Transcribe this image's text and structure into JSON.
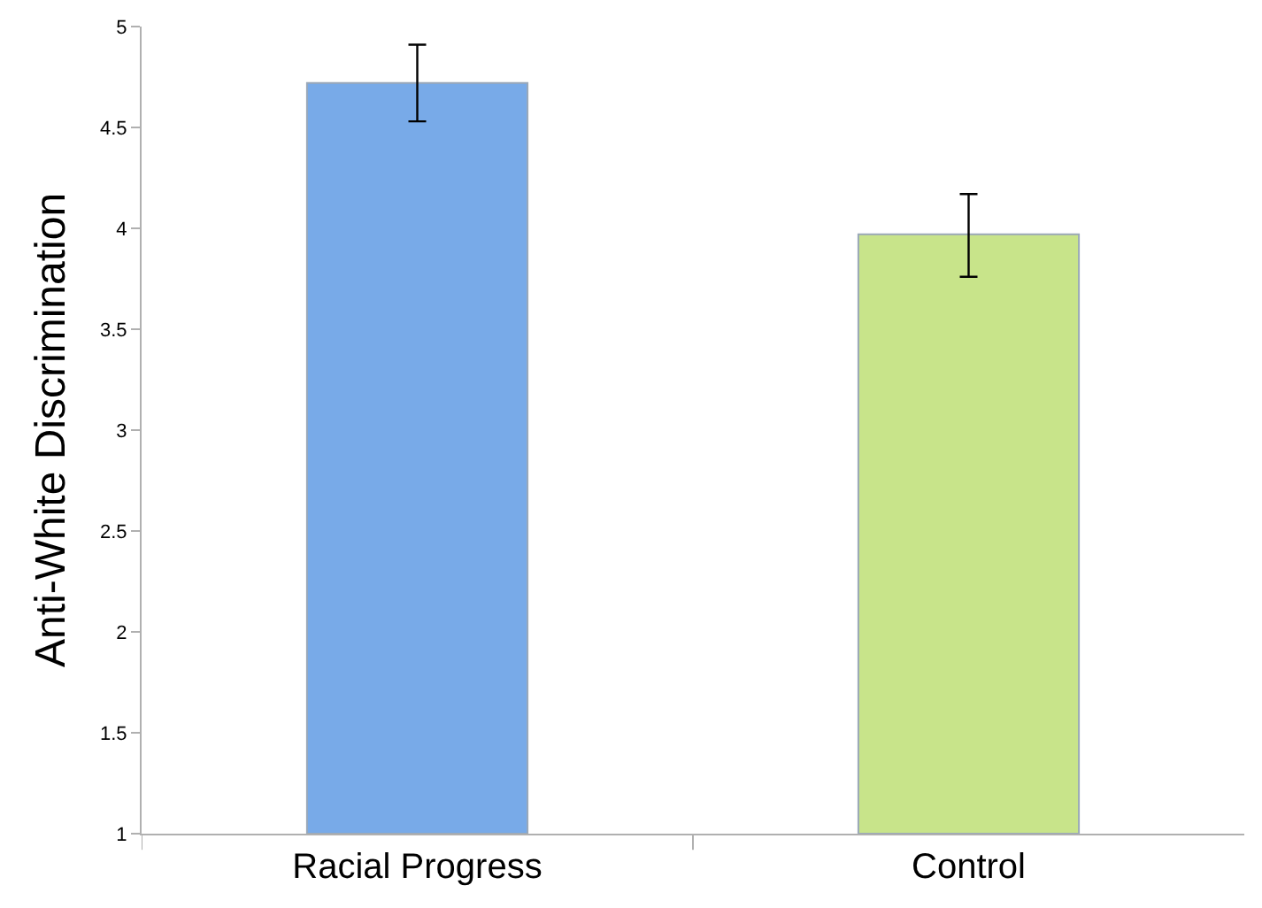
{
  "chart_data": {
    "type": "bar",
    "ylabel": "Anti-White Discrimination",
    "categories": [
      "Racial Progress",
      "Control"
    ],
    "values": [
      4.72,
      3.97
    ],
    "errors": [
      [
        4.53,
        4.91
      ],
      [
        3.76,
        4.17
      ]
    ],
    "colors": [
      "#78aae8",
      "#c8e48a"
    ],
    "ylim": [
      1,
      5
    ],
    "yticks": [
      1,
      1.5,
      2,
      2.5,
      3,
      3.5,
      4,
      4.5,
      5
    ]
  }
}
